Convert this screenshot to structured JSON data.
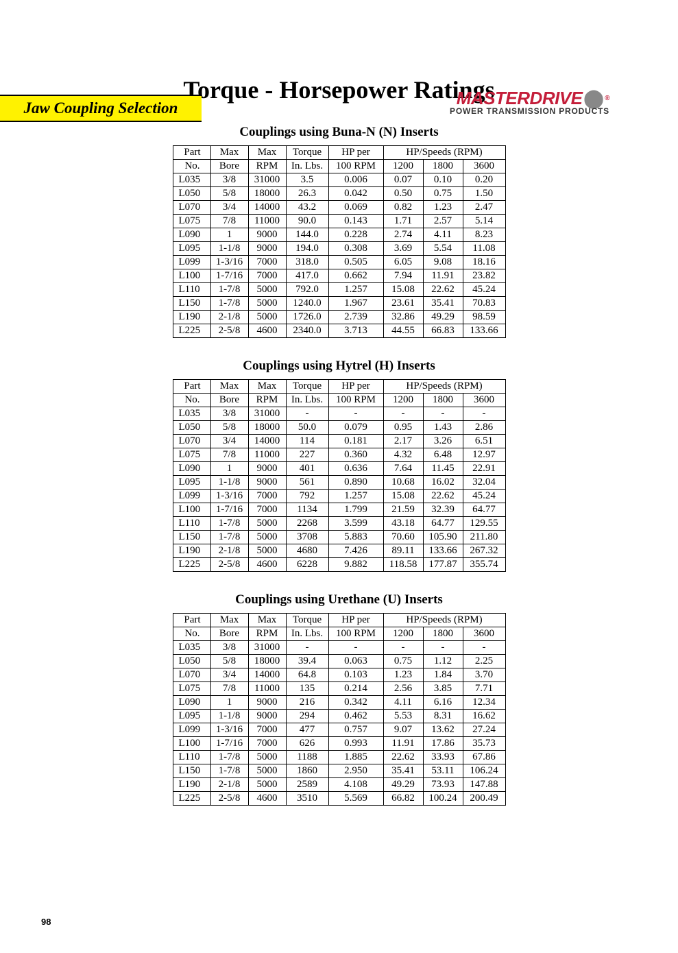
{
  "header_band": "Jaw Coupling Selection",
  "brand_name": "MASTERDRIVE",
  "brand_sub": "POWER TRANSMISSION PRODUCTS",
  "main_title": "Torque - Horsepower Ratings",
  "page_number": "98",
  "col_headers_top": {
    "part": "Part",
    "bore": "Max",
    "rpm": "Max",
    "torque": "Torque",
    "hpper": "HP per",
    "hps": "HP/Speeds (RPM)"
  },
  "col_headers_bot": {
    "part": "No.",
    "bore": "Bore",
    "rpm": "RPM",
    "torque": "In. Lbs.",
    "hpper": "100 RPM",
    "s1": "1200",
    "s2": "1800",
    "s3": "3600"
  },
  "tables": [
    {
      "title": "Couplings using Buna-N (N) Inserts",
      "rows": [
        [
          "L035",
          "3/8",
          "31000",
          "3.5",
          "0.006",
          "0.07",
          "0.10",
          "0.20"
        ],
        [
          "L050",
          "5/8",
          "18000",
          "26.3",
          "0.042",
          "0.50",
          "0.75",
          "1.50"
        ],
        [
          "L070",
          "3/4",
          "14000",
          "43.2",
          "0.069",
          "0.82",
          "1.23",
          "2.47"
        ],
        [
          "L075",
          "7/8",
          "11000",
          "90.0",
          "0.143",
          "1.71",
          "2.57",
          "5.14"
        ],
        [
          "L090",
          "1",
          "9000",
          "144.0",
          "0.228",
          "2.74",
          "4.11",
          "8.23"
        ],
        [
          "L095",
          "1-1/8",
          "9000",
          "194.0",
          "0.308",
          "3.69",
          "5.54",
          "11.08"
        ],
        [
          "L099",
          "1-3/16",
          "7000",
          "318.0",
          "0.505",
          "6.05",
          "9.08",
          "18.16"
        ],
        [
          "L100",
          "1-7/16",
          "7000",
          "417.0",
          "0.662",
          "7.94",
          "11.91",
          "23.82"
        ],
        [
          "L110",
          "1-7/8",
          "5000",
          "792.0",
          "1.257",
          "15.08",
          "22.62",
          "45.24"
        ],
        [
          "L150",
          "1-7/8",
          "5000",
          "1240.0",
          "1.967",
          "23.61",
          "35.41",
          "70.83"
        ],
        [
          "L190",
          "2-1/8",
          "5000",
          "1726.0",
          "2.739",
          "32.86",
          "49.29",
          "98.59"
        ],
        [
          "L225",
          "2-5/8",
          "4600",
          "2340.0",
          "3.713",
          "44.55",
          "66.83",
          "133.66"
        ]
      ]
    },
    {
      "title": "Couplings using Hytrel (H) Inserts",
      "rows": [
        [
          "L035",
          "3/8",
          "31000",
          "-",
          "-",
          "-",
          "-",
          "-"
        ],
        [
          "L050",
          "5/8",
          "18000",
          "50.0",
          "0.079",
          "0.95",
          "1.43",
          "2.86"
        ],
        [
          "L070",
          "3/4",
          "14000",
          "114",
          "0.181",
          "2.17",
          "3.26",
          "6.51"
        ],
        [
          "L075",
          "7/8",
          "11000",
          "227",
          "0.360",
          "4.32",
          "6.48",
          "12.97"
        ],
        [
          "L090",
          "1",
          "9000",
          "401",
          "0.636",
          "7.64",
          "11.45",
          "22.91"
        ],
        [
          "L095",
          "1-1/8",
          "9000",
          "561",
          "0.890",
          "10.68",
          "16.02",
          "32.04"
        ],
        [
          "L099",
          "1-3/16",
          "7000",
          "792",
          "1.257",
          "15.08",
          "22.62",
          "45.24"
        ],
        [
          "L100",
          "1-7/16",
          "7000",
          "1134",
          "1.799",
          "21.59",
          "32.39",
          "64.77"
        ],
        [
          "L110",
          "1-7/8",
          "5000",
          "2268",
          "3.599",
          "43.18",
          "64.77",
          "129.55"
        ],
        [
          "L150",
          "1-7/8",
          "5000",
          "3708",
          "5.883",
          "70.60",
          "105.90",
          "211.80"
        ],
        [
          "L190",
          "2-1/8",
          "5000",
          "4680",
          "7.426",
          "89.11",
          "133.66",
          "267.32"
        ],
        [
          "L225",
          "2-5/8",
          "4600",
          "6228",
          "9.882",
          "118.58",
          "177.87",
          "355.74"
        ]
      ]
    },
    {
      "title": "Couplings using Urethane (U) Inserts",
      "rows": [
        [
          "L035",
          "3/8",
          "31000",
          "-",
          "-",
          "-",
          "-",
          "-"
        ],
        [
          "L050",
          "5/8",
          "18000",
          "39.4",
          "0.063",
          "0.75",
          "1.12",
          "2.25"
        ],
        [
          "L070",
          "3/4",
          "14000",
          "64.8",
          "0.103",
          "1.23",
          "1.84",
          "3.70"
        ],
        [
          "L075",
          "7/8",
          "11000",
          "135",
          "0.214",
          "2.56",
          "3.85",
          "7.71"
        ],
        [
          "L090",
          "1",
          "9000",
          "216",
          "0.342",
          "4.11",
          "6.16",
          "12.34"
        ],
        [
          "L095",
          "1-1/8",
          "9000",
          "294",
          "0.462",
          "5.53",
          "8.31",
          "16.62"
        ],
        [
          "L099",
          "1-3/16",
          "7000",
          "477",
          "0.757",
          "9.07",
          "13.62",
          "27.24"
        ],
        [
          "L100",
          "1-7/16",
          "7000",
          "626",
          "0.993",
          "11.91",
          "17.86",
          "35.73"
        ],
        [
          "L110",
          "1-7/8",
          "5000",
          "1188",
          "1.885",
          "22.62",
          "33.93",
          "67.86"
        ],
        [
          "L150",
          "1-7/8",
          "5000",
          "1860",
          "2.950",
          "35.41",
          "53.11",
          "106.24"
        ],
        [
          "L190",
          "2-1/8",
          "5000",
          "2589",
          "4.108",
          "49.29",
          "73.93",
          "147.88"
        ],
        [
          "L225",
          "2-5/8",
          "4600",
          "3510",
          "5.569",
          "66.82",
          "100.24",
          "200.49"
        ]
      ]
    }
  ],
  "style": {
    "band_bg": "#fff200",
    "brand_red": "#c41e3a",
    "border_color": "#000000",
    "body_bg": "#ffffff",
    "font_body": "Times New Roman",
    "font_title_size": 36,
    "font_section_size": 19,
    "font_table_size": 15
  }
}
